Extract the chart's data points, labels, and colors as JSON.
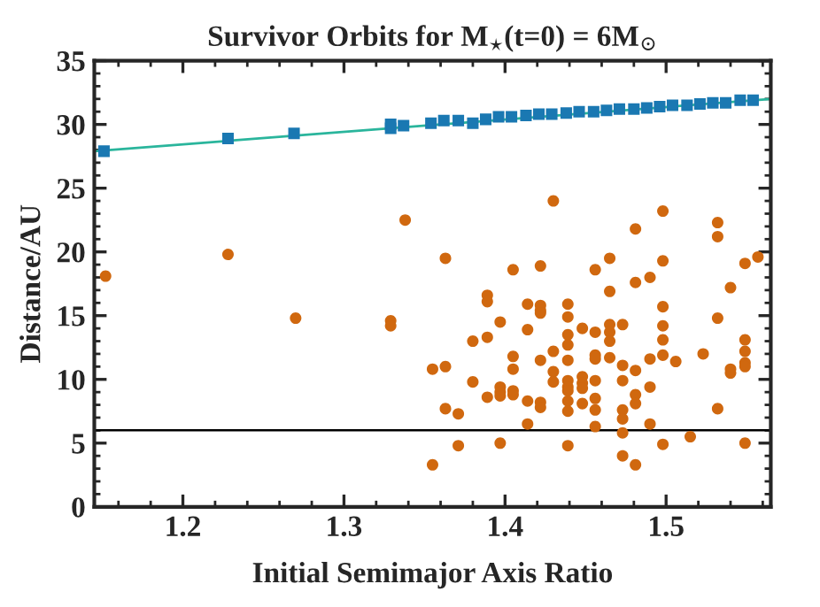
{
  "chart_data": {
    "type": "scatter",
    "title": "Survivor Orbits for M$_{⋆}$(t=0) = 6M$_{⊙}$",
    "xlabel": "Initial Semimajor Axis Ratio",
    "ylabel": "Distance/AU",
    "xlim": [
      1.145,
      1.565
    ],
    "ylim": [
      0,
      35
    ],
    "xticks": [
      1.2,
      1.3,
      1.4,
      1.5
    ],
    "yticks": [
      0,
      5,
      10,
      15,
      20,
      25,
      30,
      35
    ],
    "grid": false,
    "legend": false,
    "ref_lines": [
      {
        "axis": "y",
        "value": 6,
        "color": "#000000"
      }
    ],
    "series": [
      {
        "marker": "circle",
        "color": "#d0680f",
        "x": [
          1.152,
          1.228,
          1.27,
          1.329,
          1.329,
          1.338,
          1.363,
          1.355,
          1.363,
          1.363,
          1.371,
          1.371,
          1.355,
          1.38,
          1.38,
          1.389,
          1.389,
          1.389,
          1.389,
          1.397,
          1.397,
          1.397,
          1.397,
          1.397,
          1.405,
          1.405,
          1.405,
          1.405,
          1.405,
          1.414,
          1.414,
          1.414,
          1.414,
          1.422,
          1.422,
          1.422,
          1.422,
          1.422,
          1.422,
          1.422,
          1.43,
          1.43,
          1.43,
          1.43,
          1.439,
          1.439,
          1.439,
          1.439,
          1.439,
          1.439,
          1.439,
          1.439,
          1.439,
          1.439,
          1.439,
          1.448,
          1.448,
          1.448,
          1.448,
          1.448,
          1.456,
          1.456,
          1.456,
          1.456,
          1.456,
          1.456,
          1.456,
          1.456,
          1.465,
          1.465,
          1.465,
          1.465,
          1.465,
          1.465,
          1.473,
          1.473,
          1.473,
          1.473,
          1.473,
          1.473,
          1.473,
          1.481,
          1.481,
          1.481,
          1.481,
          1.481,
          1.481,
          1.49,
          1.49,
          1.49,
          1.49,
          1.498,
          1.498,
          1.498,
          1.498,
          1.498,
          1.498,
          1.498,
          1.506,
          1.515,
          1.523,
          1.532,
          1.532,
          1.532,
          1.532,
          1.54,
          1.54,
          1.54,
          1.549,
          1.549,
          1.549,
          1.549,
          1.549,
          1.549,
          1.557
        ],
        "values": [
          18.1,
          19.8,
          14.8,
          14.6,
          14.2,
          22.5,
          19.5,
          10.8,
          11.0,
          7.7,
          7.3,
          4.8,
          3.3,
          13.0,
          9.8,
          16.6,
          16.1,
          13.3,
          8.6,
          14.5,
          9.4,
          9.0,
          8.7,
          5.0,
          18.6,
          11.8,
          10.8,
          9.1,
          8.8,
          15.9,
          13.9,
          8.3,
          6.5,
          18.9,
          15.8,
          15.4,
          15.2,
          11.5,
          8.2,
          7.8,
          24.0,
          12.2,
          10.6,
          9.8,
          15.9,
          14.9,
          13.5,
          12.7,
          11.5,
          9.9,
          9.4,
          9.1,
          8.3,
          7.5,
          4.8,
          14.0,
          10.2,
          9.7,
          9.3,
          8.1,
          18.6,
          13.7,
          11.9,
          11.6,
          9.9,
          8.5,
          7.6,
          6.3,
          19.5,
          16.9,
          14.3,
          13.7,
          13.0,
          11.7,
          14.3,
          11.1,
          9.9,
          7.6,
          6.9,
          5.8,
          4.0,
          21.8,
          17.6,
          10.7,
          8.8,
          8.1,
          3.3,
          18.0,
          11.6,
          9.4,
          6.5,
          23.2,
          19.3,
          15.7,
          14.2,
          13.1,
          11.9,
          4.9,
          11.4,
          5.5,
          12.0,
          22.3,
          21.2,
          14.8,
          7.7,
          17.2,
          10.8,
          10.5,
          19.1,
          13.1,
          12.2,
          11.3,
          11.0,
          5.0,
          19.6
        ]
      },
      {
        "marker": "square",
        "color": "#1a78b2",
        "x": [
          1.151,
          1.228,
          1.269,
          1.329,
          1.329,
          1.337,
          1.354,
          1.362,
          1.371,
          1.38,
          1.388,
          1.396,
          1.404,
          1.413,
          1.421,
          1.429,
          1.438,
          1.446,
          1.455,
          1.463,
          1.471,
          1.48,
          1.488,
          1.496,
          1.504,
          1.513,
          1.521,
          1.529,
          1.537,
          1.546,
          1.554
        ],
        "values": [
          27.9,
          28.9,
          29.3,
          30.0,
          29.7,
          29.9,
          30.1,
          30.3,
          30.3,
          30.1,
          30.4,
          30.6,
          30.6,
          30.7,
          30.8,
          30.8,
          30.9,
          31.0,
          31.0,
          31.1,
          31.2,
          31.2,
          31.3,
          31.4,
          31.5,
          31.5,
          31.6,
          31.7,
          31.7,
          31.9,
          31.9
        ]
      },
      {
        "type": "line",
        "color": "#2ab59c",
        "x": [
          1.145,
          1.565
        ],
        "values": [
          27.9,
          32.0
        ]
      }
    ]
  }
}
